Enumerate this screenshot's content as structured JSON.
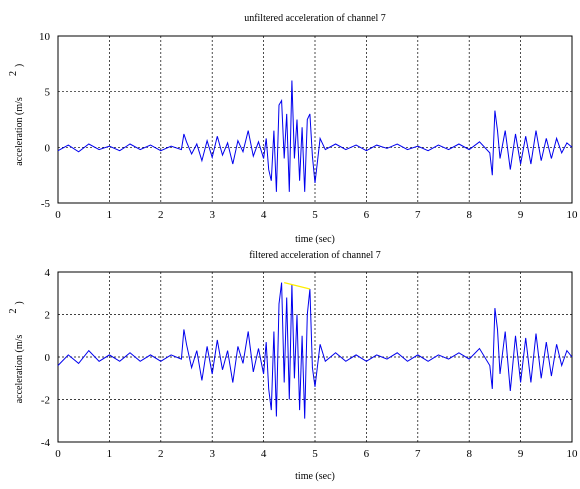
{
  "colors": {
    "signal": "#0000ee",
    "highlight": "#ffee00"
  },
  "chart_data": [
    {
      "type": "line",
      "title": "unfiltered acceleration of channel 7",
      "xlabel": "time (sec)",
      "ylabel": "acceleration (m/s",
      "ylabel_superscript": "2",
      "ylabel_close": ")",
      "xlim": [
        0,
        10
      ],
      "ylim": [
        -5,
        10
      ],
      "xticks": [
        "0",
        "1",
        "2",
        "3",
        "4",
        "5",
        "6",
        "7",
        "8",
        "9",
        "10"
      ],
      "yticks": [
        "-5",
        "0",
        "5",
        "10"
      ],
      "grid": true,
      "series": [
        {
          "x": [
            0,
            0.2,
            0.4,
            0.6,
            0.8,
            1,
            1.2,
            1.4,
            1.6,
            1.8,
            2,
            2.2,
            2.4,
            2.45,
            2.5,
            2.6,
            2.7,
            2.8,
            2.9,
            3,
            3.1,
            3.2,
            3.3,
            3.4,
            3.5,
            3.6,
            3.7,
            3.8,
            3.9,
            4,
            4.05,
            4.1,
            4.15,
            4.2,
            4.25,
            4.3,
            4.35,
            4.4,
            4.45,
            4.5,
            4.55,
            4.6,
            4.65,
            4.7,
            4.75,
            4.8,
            4.85,
            4.9,
            4.95,
            5,
            5.1,
            5.2,
            5.4,
            5.6,
            5.8,
            6,
            6.2,
            6.4,
            6.6,
            6.8,
            7,
            7.2,
            7.4,
            7.6,
            7.8,
            8,
            8.2,
            8.4,
            8.45,
            8.5,
            8.55,
            8.6,
            8.7,
            8.8,
            8.9,
            9,
            9.1,
            9.2,
            9.3,
            9.4,
            9.5,
            9.6,
            9.7,
            9.8,
            9.9,
            10
          ],
          "y": [
            -0.3,
            0.2,
            -0.4,
            0.3,
            -0.2,
            0.1,
            -0.3,
            0.3,
            -0.2,
            0.2,
            -0.3,
            0.1,
            -0.2,
            1.2,
            0.5,
            -0.6,
            0.3,
            -1.2,
            0.6,
            -0.9,
            1.0,
            -0.7,
            0.4,
            -1.5,
            0.6,
            -0.4,
            1.5,
            -0.8,
            0.5,
            -1.0,
            0.8,
            -2.0,
            -3.0,
            1.5,
            -4.0,
            3.8,
            4.2,
            -1.0,
            3.0,
            -4.0,
            6.0,
            -1.0,
            2.5,
            -3.0,
            1.8,
            -4.0,
            2.5,
            3.0,
            -0.8,
            -3.2,
            0.8,
            -0.2,
            0.3,
            -0.2,
            0.2,
            -0.3,
            0.2,
            -0.1,
            0.3,
            -0.2,
            0.1,
            -0.3,
            0.2,
            -0.2,
            0.3,
            -0.2,
            0.5,
            -0.5,
            -2.5,
            3.3,
            1.5,
            -1.0,
            1.5,
            -2.0,
            1.2,
            -1.5,
            1.0,
            -1.5,
            1.5,
            -1.2,
            0.8,
            -1.0,
            0.8,
            -0.5,
            0.4,
            0.0
          ]
        }
      ]
    },
    {
      "type": "line",
      "title": "filtered acceleration of channel 7",
      "xlabel": "time (sec)",
      "ylabel": "acceleration (m/s",
      "ylabel_superscript": "2",
      "ylabel_close": ")",
      "xlim": [
        0,
        10
      ],
      "ylim": [
        -4,
        4
      ],
      "xticks": [
        "0",
        "1",
        "2",
        "3",
        "4",
        "5",
        "6",
        "7",
        "8",
        "9",
        "10"
      ],
      "yticks": [
        "-4",
        "-2",
        "0",
        "2",
        "4"
      ],
      "grid": true,
      "series": [
        {
          "x": [
            0,
            0.2,
            0.4,
            0.6,
            0.8,
            1,
            1.2,
            1.4,
            1.6,
            1.8,
            2,
            2.2,
            2.4,
            2.45,
            2.5,
            2.6,
            2.7,
            2.8,
            2.9,
            3,
            3.1,
            3.2,
            3.3,
            3.4,
            3.5,
            3.6,
            3.7,
            3.8,
            3.9,
            4,
            4.05,
            4.1,
            4.15,
            4.2,
            4.25,
            4.3,
            4.35,
            4.4,
            4.45,
            4.5,
            4.55,
            4.6,
            4.65,
            4.7,
            4.75,
            4.8,
            4.85,
            4.9,
            4.95,
            5,
            5.1,
            5.2,
            5.4,
            5.6,
            5.8,
            6,
            6.2,
            6.4,
            6.6,
            6.8,
            7,
            7.2,
            7.4,
            7.6,
            7.8,
            8,
            8.2,
            8.4,
            8.45,
            8.5,
            8.55,
            8.6,
            8.7,
            8.8,
            8.9,
            9,
            9.1,
            9.2,
            9.3,
            9.4,
            9.5,
            9.6,
            9.7,
            9.8,
            9.9,
            10
          ],
          "y": [
            -0.4,
            0.1,
            -0.3,
            0.3,
            -0.2,
            0.1,
            -0.2,
            0.2,
            -0.2,
            0.1,
            -0.2,
            0.1,
            -0.1,
            1.3,
            0.6,
            -0.5,
            0.3,
            -1.1,
            0.5,
            -0.8,
            0.8,
            -0.6,
            0.3,
            -1.2,
            0.5,
            -0.3,
            1.2,
            -0.7,
            0.4,
            -0.8,
            0.7,
            -1.5,
            -2.5,
            1.2,
            -2.8,
            2.5,
            3.5,
            -1.2,
            2.8,
            -2.0,
            3.4,
            -1.0,
            2.0,
            -2.5,
            1.0,
            -2.9,
            2.0,
            3.2,
            -0.5,
            -1.4,
            0.6,
            -0.2,
            0.2,
            -0.2,
            0.1,
            -0.2,
            0.1,
            -0.1,
            0.2,
            -0.2,
            0.1,
            -0.2,
            0.1,
            -0.1,
            0.2,
            -0.1,
            0.4,
            -0.4,
            -1.5,
            2.3,
            1.3,
            -0.8,
            1.2,
            -1.6,
            1.0,
            -1.2,
            0.9,
            -1.2,
            1.1,
            -1.0,
            0.7,
            -0.9,
            0.6,
            -0.4,
            0.3,
            0.0
          ]
        }
      ],
      "highlight_segment": {
        "x": [
          4.4,
          4.9
        ],
        "y": [
          3.5,
          3.2
        ]
      }
    }
  ]
}
